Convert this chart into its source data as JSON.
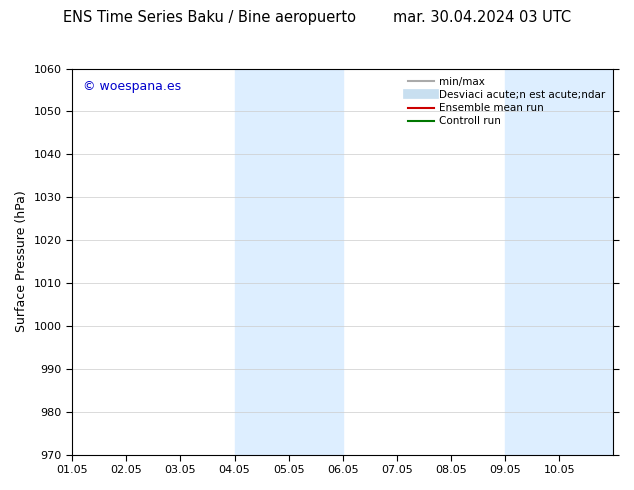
{
  "title_left": "ENS Time Series Baku / Bine aeropuerto",
  "title_right": "mar. 30.04.2024 03 UTC",
  "ylabel": "Surface Pressure (hPa)",
  "ylim": [
    970,
    1060
  ],
  "yticks": [
    970,
    980,
    990,
    1000,
    1010,
    1020,
    1030,
    1040,
    1050,
    1060
  ],
  "xtick_labels": [
    "01.05",
    "02.05",
    "03.05",
    "04.05",
    "05.05",
    "06.05",
    "07.05",
    "08.05",
    "09.05",
    "10.05"
  ],
  "shaded_color": "#ddeeff",
  "shaded_regions": [
    {
      "xstart": 3,
      "xend": 5
    },
    {
      "xstart": 8,
      "xend": 10
    }
  ],
  "watermark_text": "© woespana.es",
  "watermark_color": "#0000cc",
  "legend_items": [
    {
      "label": "min/max",
      "color": "#aaaaaa",
      "lw": 1.5
    },
    {
      "label": "Desviaci acute;n est acute;ndar",
      "color": "#c8dff0",
      "lw": 7
    },
    {
      "label": "Ensemble mean run",
      "color": "#cc0000",
      "lw": 1.5
    },
    {
      "label": "Controll run",
      "color": "#007700",
      "lw": 1.5
    }
  ],
  "bg_color": "#ffffff",
  "title_fontsize": 10.5,
  "tick_fontsize": 8,
  "ylabel_fontsize": 9,
  "watermark_fontsize": 9,
  "legend_fontsize": 7.5
}
